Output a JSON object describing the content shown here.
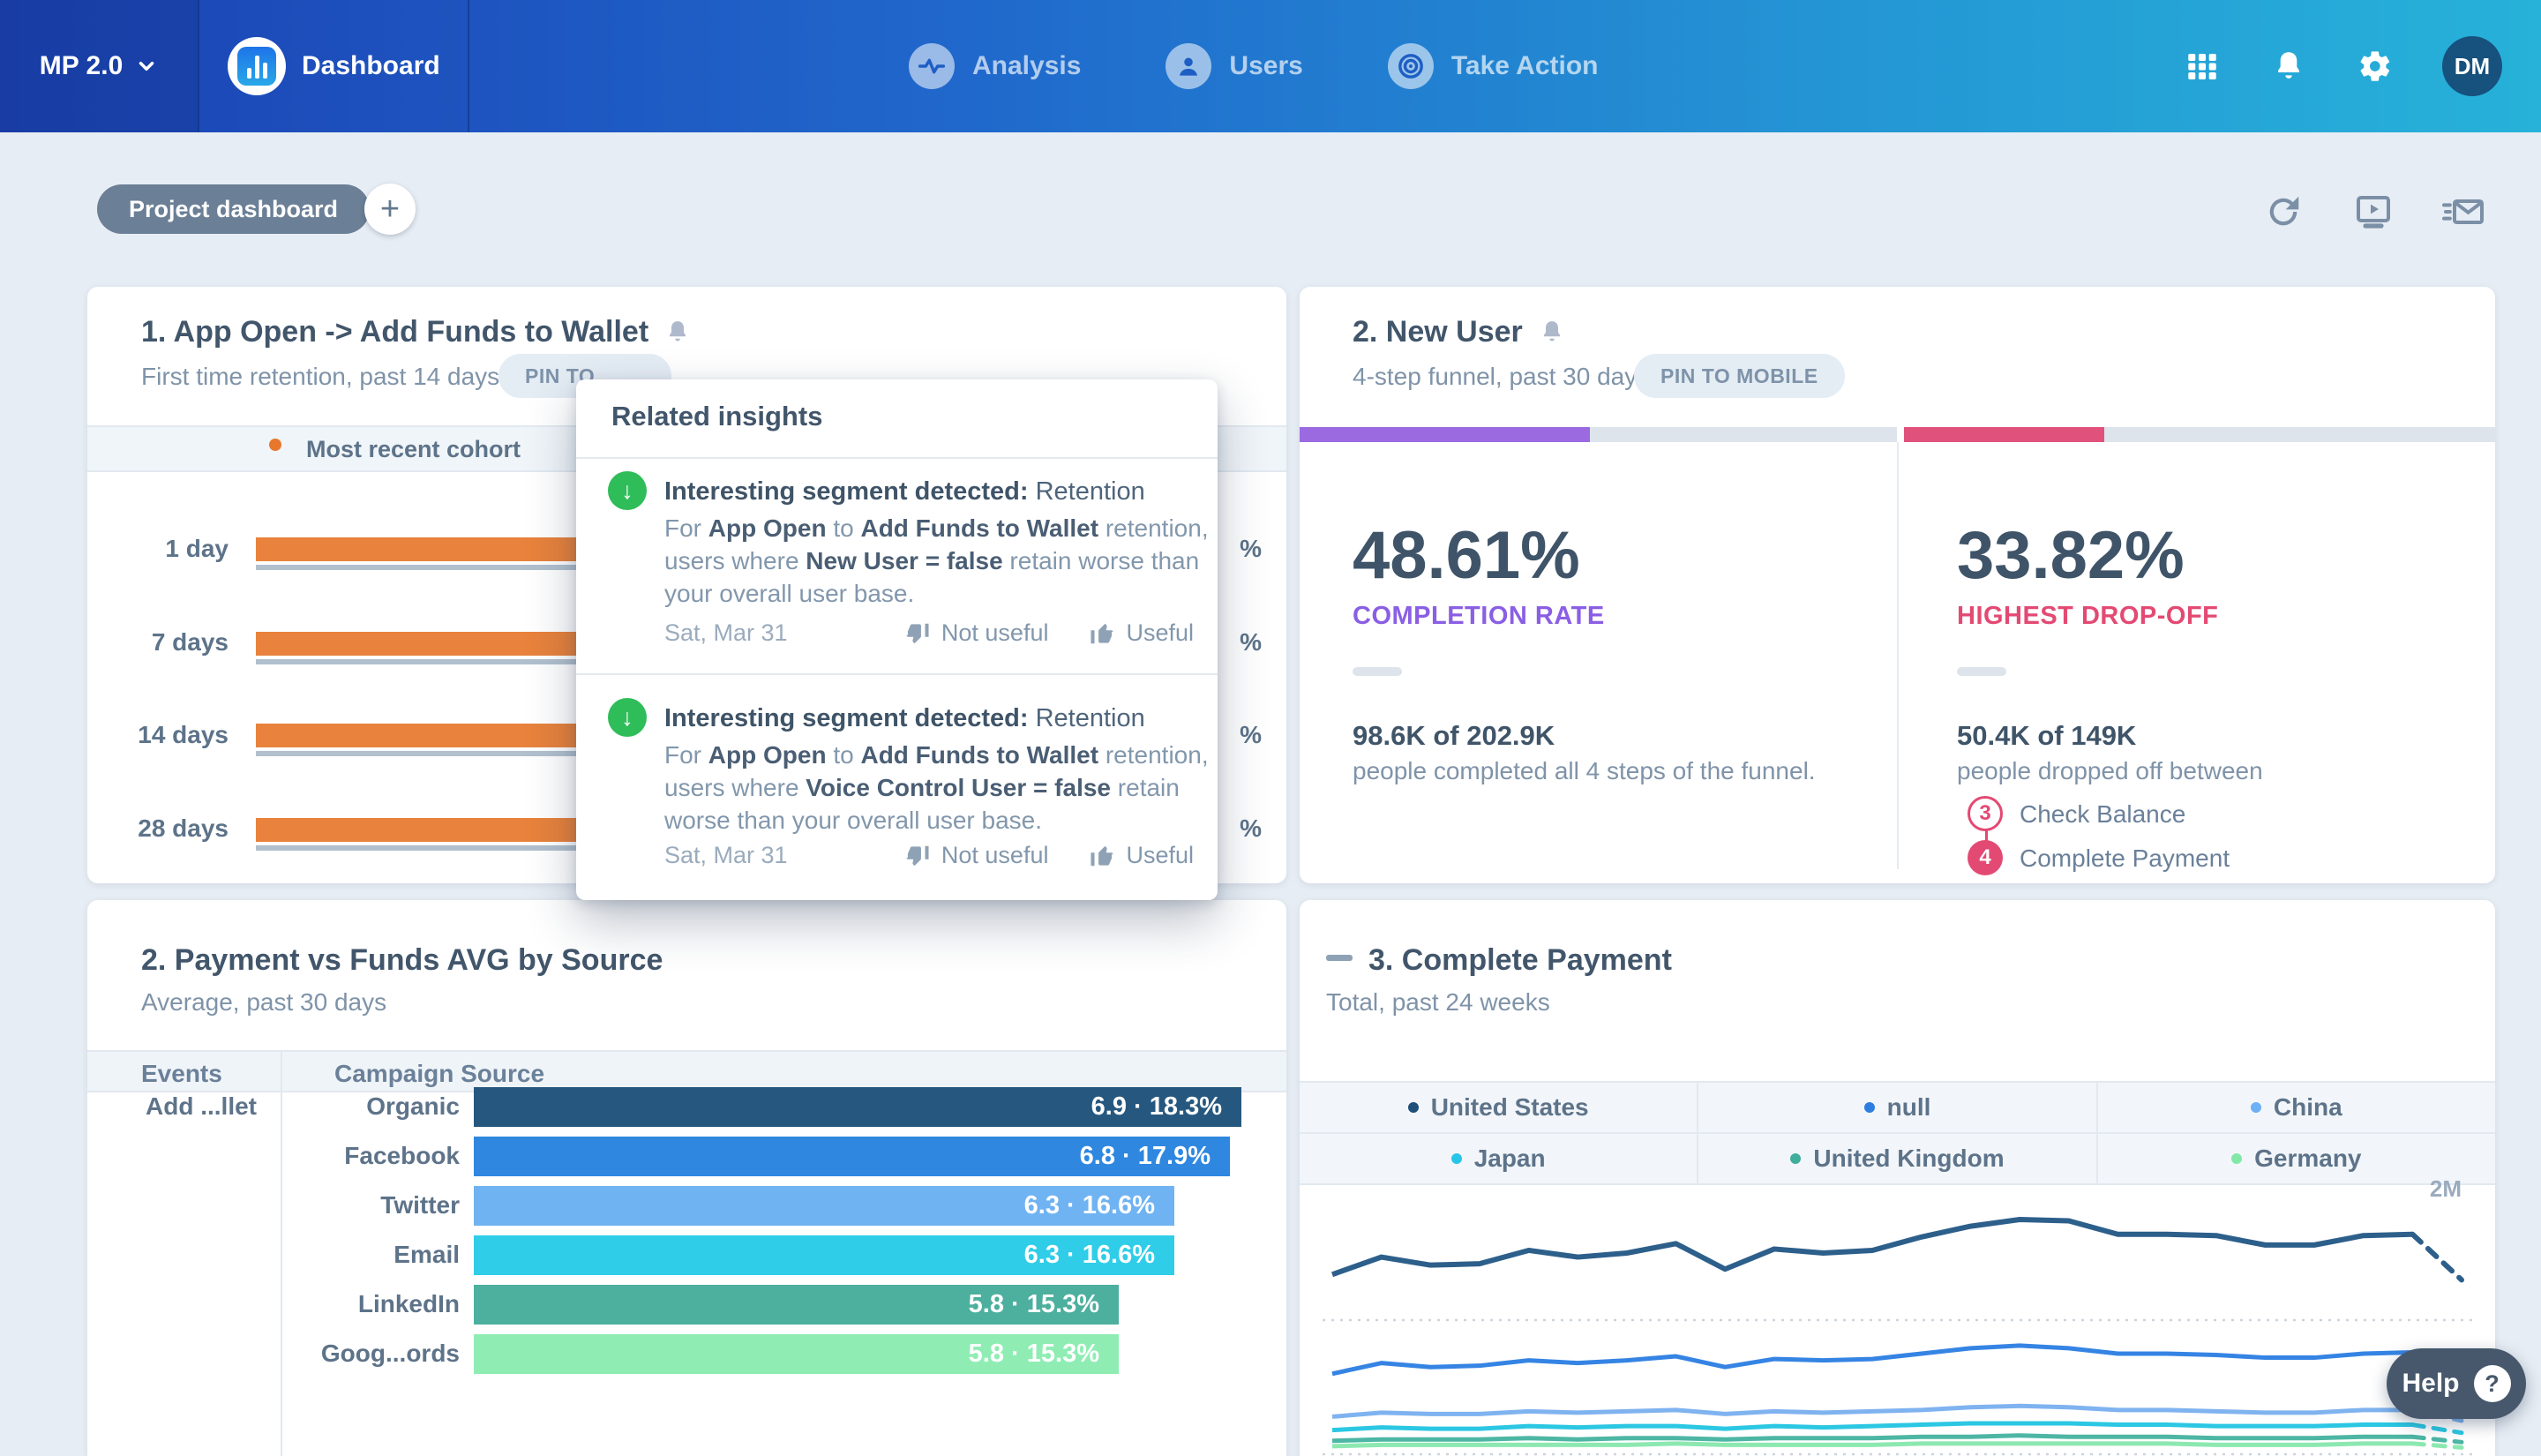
{
  "nav": {
    "workspace": "MP 2.0",
    "product": "Dashboard",
    "items": [
      {
        "label": "Analysis",
        "icon": "pulse-icon"
      },
      {
        "label": "Users",
        "icon": "user-icon"
      },
      {
        "label": "Take Action",
        "icon": "target-icon"
      }
    ],
    "avatar_initials": "DM"
  },
  "toolbar": {
    "dashboard_pill": "Project dashboard",
    "add_label": "+"
  },
  "retention_card": {
    "title": "1. App Open -> Add Funds to Wallet",
    "subtitle": "First time retention, past 14 days",
    "pin_badge": "PIN TO",
    "legend": "Most recent cohort",
    "bar_color": "#e8823c",
    "benchmark_color": "#b2c0ce",
    "rows": [
      {
        "label": "1 day",
        "value_suffix": "%"
      },
      {
        "label": "7 days",
        "value_suffix": "%"
      },
      {
        "label": "14 days",
        "value_suffix": "%"
      },
      {
        "label": "28 days",
        "value_suffix": "%"
      }
    ]
  },
  "insights_popup": {
    "title": "Related insights",
    "items": [
      {
        "heading_bold": "Interesting segment detected:",
        "heading_rest": " Retention",
        "body_segments": [
          {
            "text": "For ",
            "style": "light"
          },
          {
            "text": "App Open",
            "style": "dark"
          },
          {
            "text": " to ",
            "style": "light"
          },
          {
            "text": "Add Funds to Wallet",
            "style": "dark"
          },
          {
            "text": " retention, users where ",
            "style": "light"
          },
          {
            "text": "New User = false",
            "style": "dark"
          },
          {
            "text": " retain worse than your overall user base.",
            "style": "light"
          }
        ],
        "date": "Sat, Mar 31",
        "not_useful_label": "Not useful",
        "useful_label": "Useful"
      },
      {
        "heading_bold": "Interesting segment detected:",
        "heading_rest": " Retention",
        "body_segments": [
          {
            "text": "For ",
            "style": "light"
          },
          {
            "text": "App Open",
            "style": "dark"
          },
          {
            "text": " to ",
            "style": "light"
          },
          {
            "text": "Add Funds to Wallet",
            "style": "dark"
          },
          {
            "text": " retention, users where ",
            "style": "light"
          },
          {
            "text": "Voice Control User = false",
            "style": "dark"
          },
          {
            "text": " retain worse than your overall user base.",
            "style": "light"
          }
        ],
        "date": "Sat, Mar 31",
        "not_useful_label": "Not useful",
        "useful_label": "Useful"
      }
    ]
  },
  "funnel_card": {
    "title": "2. New User",
    "subtitle": "4-step funnel, past 30 days",
    "pin_badge": "PIN TO MOBILE",
    "completion": {
      "pct": "48.61%",
      "label": "COMPLETION RATE",
      "label_color": "#8a5fe4",
      "fill_color": "#9b6ae0",
      "fill_pct": 48.61,
      "numbers": "98.6K of 202.9K",
      "caption": "people completed all 4 steps of the funnel."
    },
    "dropoff": {
      "pct": "33.82%",
      "label": "HIGHEST DROP-OFF",
      "label_color": "#e34a73",
      "fill_color": "#e0527c",
      "fill_pct": 33.82,
      "numbers": "50.4K of 149K",
      "caption": "people dropped off between",
      "steps": [
        {
          "num": "3",
          "label": "Check Balance",
          "filled": false
        },
        {
          "num": "4",
          "label": "Complete Payment",
          "filled": true
        }
      ]
    }
  },
  "source_card": {
    "title": "2. Payment vs Funds AVG by Source",
    "subtitle": "Average, past 30 days",
    "col_events": "Events",
    "col_source": "Campaign Source",
    "event_label": "Add ...llet"
  },
  "payment_card": {
    "title": "3. Complete Payment",
    "subtitle": "Total, past 24 weeks",
    "y_top_label": "2M",
    "legend": [
      {
        "label": "United States",
        "color": "#1f4e79"
      },
      {
        "label": "null",
        "color": "#2e7de0"
      },
      {
        "label": "China",
        "color": "#6cb0f5"
      },
      {
        "label": "Japan",
        "color": "#27c5e8"
      },
      {
        "label": "United Kingdom",
        "color": "#3fae9c"
      },
      {
        "label": "Germany",
        "color": "#82e8a8"
      }
    ]
  },
  "help": {
    "label": "Help",
    "icon_glyph": "?"
  },
  "icons": {
    "nav": [
      "grid-icon",
      "bell-icon",
      "gear-icon"
    ],
    "toolbar": [
      "refresh-icon",
      "present-icon",
      "send-email-icon"
    ],
    "card_title": [
      "bell-icon",
      "minus-icon"
    ],
    "insight": [
      "arrow-down-circle-icon",
      "thumbs-down-icon",
      "thumbs-up-icon"
    ]
  },
  "chart_data": [
    {
      "type": "bar",
      "title": "2. Payment vs Funds AVG by Source",
      "categories": [
        "Organic",
        "Facebook",
        "Twitter",
        "Email",
        "LinkedIn",
        "Goog...ords"
      ],
      "values": [
        6.9,
        6.8,
        6.3,
        6.3,
        5.8,
        5.8
      ],
      "percents": [
        18.3,
        17.9,
        16.6,
        16.6,
        15.3,
        15.3
      ],
      "bar_labels": [
        "6.9 · 18.3%",
        "6.8 · 17.9%",
        "6.3 · 16.6%",
        "6.3 · 16.6%",
        "5.8 · 15.3%",
        "5.8 · 15.3%"
      ],
      "colors": [
        "#26587f",
        "#2f87e0",
        "#6fb3f2",
        "#30cde8",
        "#4daf9e",
        "#8fedb4"
      ],
      "xlabel": "Campaign Source average",
      "xlim": [
        0,
        7.4
      ],
      "orientation": "horizontal"
    },
    {
      "type": "line",
      "title": "3. Complete Payment",
      "x_label": "past 24 weeks",
      "n_points": 24,
      "ylim_millions": [
        0,
        2
      ],
      "y_tick_label": "2M",
      "gridlines_millions": [
        1,
        0
      ],
      "last_segment": "dashed (incomplete period)",
      "legend_position": "top",
      "series": [
        {
          "name": "United States",
          "color": "#2d5f8b",
          "width": 6,
          "values_millions": [
            1.34,
            1.47,
            1.41,
            1.42,
            1.52,
            1.47,
            1.5,
            1.57,
            1.38,
            1.53,
            1.5,
            1.52,
            1.62,
            1.7,
            1.75,
            1.74,
            1.64,
            1.64,
            1.63,
            1.56,
            1.56,
            1.63,
            1.64,
            1.3
          ]
        },
        {
          "name": "null",
          "color": "#3584e4",
          "width": 5,
          "values_millions": [
            0.6,
            0.68,
            0.65,
            0.66,
            0.7,
            0.68,
            0.7,
            0.73,
            0.65,
            0.71,
            0.7,
            0.71,
            0.75,
            0.79,
            0.81,
            0.79,
            0.75,
            0.75,
            0.74,
            0.72,
            0.72,
            0.75,
            0.76,
            0.58
          ]
        },
        {
          "name": "China",
          "color": "#7fb3f0",
          "width": 5,
          "values_millions": [
            0.28,
            0.31,
            0.3,
            0.3,
            0.32,
            0.31,
            0.32,
            0.33,
            0.3,
            0.32,
            0.31,
            0.32,
            0.33,
            0.35,
            0.36,
            0.35,
            0.33,
            0.33,
            0.32,
            0.31,
            0.31,
            0.33,
            0.33,
            0.25
          ]
        },
        {
          "name": "Japan",
          "color": "#2bc7e3",
          "width": 5,
          "values_millions": [
            0.18,
            0.2,
            0.19,
            0.19,
            0.21,
            0.2,
            0.21,
            0.21,
            0.19,
            0.21,
            0.2,
            0.21,
            0.22,
            0.23,
            0.23,
            0.23,
            0.22,
            0.22,
            0.21,
            0.21,
            0.21,
            0.22,
            0.22,
            0.16
          ]
        },
        {
          "name": "United Kingdom",
          "color": "#4db6a4",
          "width": 5,
          "values_millions": [
            0.1,
            0.11,
            0.11,
            0.11,
            0.12,
            0.11,
            0.12,
            0.12,
            0.11,
            0.12,
            0.12,
            0.12,
            0.13,
            0.13,
            0.14,
            0.13,
            0.13,
            0.13,
            0.12,
            0.12,
            0.12,
            0.13,
            0.13,
            0.09
          ]
        },
        {
          "name": "Germany",
          "color": "#8ce8b0",
          "width": 5,
          "values_millions": [
            0.06,
            0.07,
            0.07,
            0.07,
            0.07,
            0.07,
            0.07,
            0.08,
            0.07,
            0.07,
            0.07,
            0.07,
            0.08,
            0.08,
            0.08,
            0.08,
            0.08,
            0.08,
            0.07,
            0.07,
            0.07,
            0.08,
            0.08,
            0.05
          ]
        }
      ]
    }
  ]
}
